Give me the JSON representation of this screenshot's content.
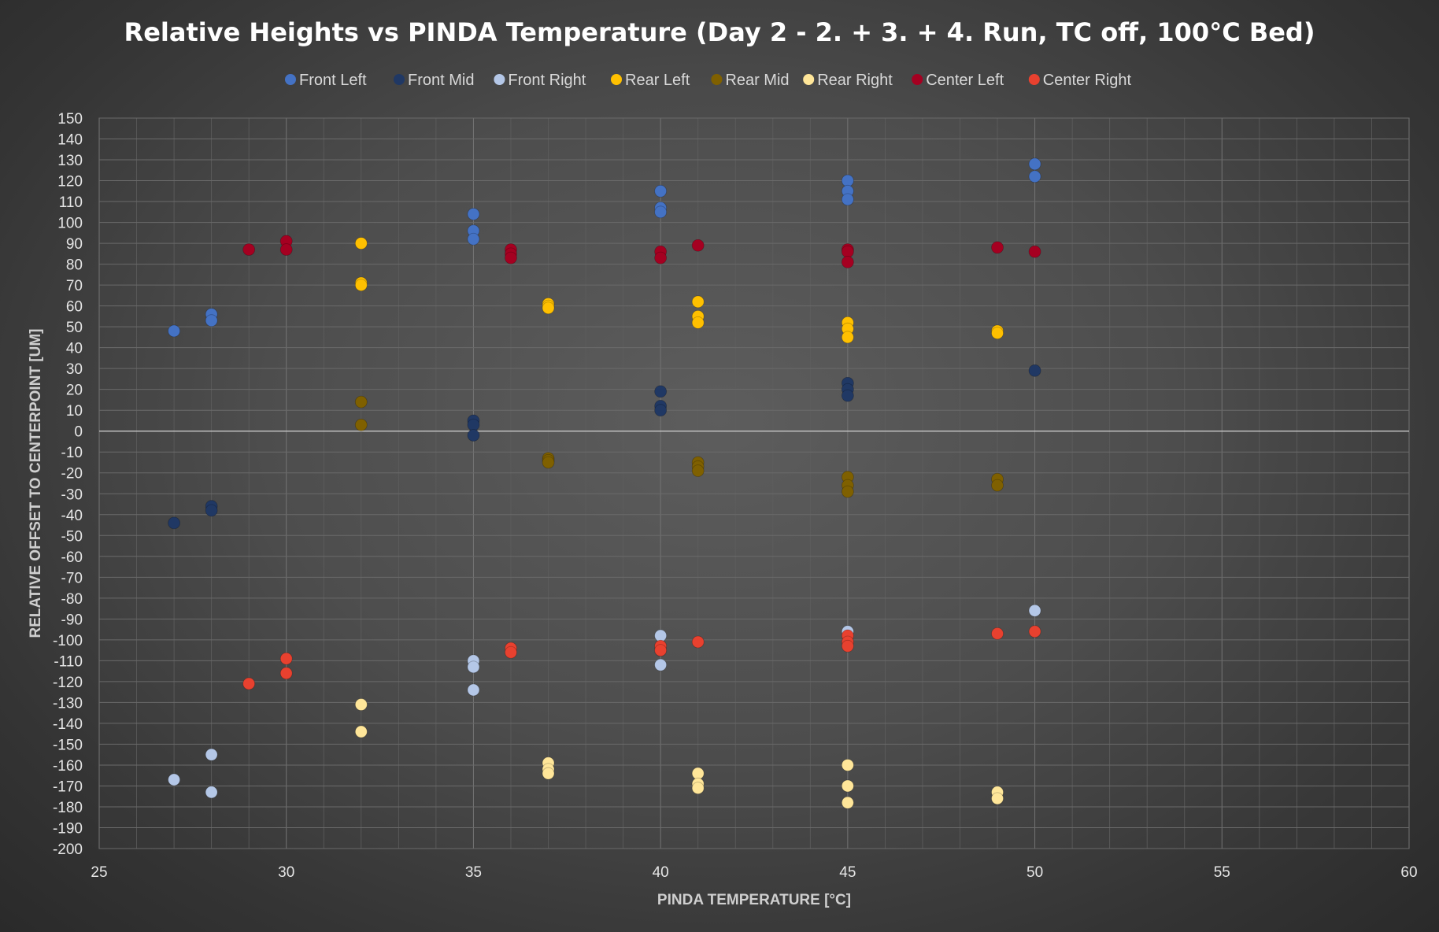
{
  "chart_data": {
    "type": "scatter",
    "title": "Relative Heights vs PINDA Temperature (Day 2 - 2. + 3. + 4. Run, TC off, 100°C Bed)",
    "xlabel": "PINDA TEMPERATURE [°C]",
    "ylabel": "RELATIVE OFFSET TO CENTERPOINT [UM]",
    "xlim": [
      25,
      60
    ],
    "ylim": [
      -200,
      150
    ],
    "x_ticks": [
      "25",
      "30",
      "35",
      "40",
      "45",
      "50",
      "55",
      "60"
    ],
    "y_ticks": [
      "150",
      "140",
      "130",
      "120",
      "110",
      "100",
      "90",
      "80",
      "70",
      "60",
      "50",
      "40",
      "30",
      "20",
      "10",
      "0",
      "-10",
      "-20",
      "-30",
      "-40",
      "-50",
      "-60",
      "-70",
      "-80",
      "-90",
      "-100",
      "-110",
      "-120",
      "-130",
      "-140",
      "-150",
      "-160",
      "-170",
      "-180",
      "-190",
      "-200"
    ],
    "grid": true,
    "legend_position": "top",
    "series": [
      {
        "name": "Front Left",
        "color": "#4472c4",
        "x": [
          27,
          28,
          28,
          35,
          35,
          35,
          40,
          40,
          40,
          45,
          45,
          45,
          50,
          50
        ],
        "y": [
          48,
          56,
          53,
          104,
          96,
          92,
          115,
          107,
          105,
          120,
          115,
          111,
          128,
          122
        ]
      },
      {
        "name": "Front Mid",
        "color": "#203864",
        "x": [
          27,
          28,
          28,
          35,
          35,
          35,
          40,
          40,
          40,
          45,
          45,
          45,
          50
        ],
        "y": [
          -44,
          -36,
          -38,
          5,
          3,
          -2,
          19,
          12,
          10,
          23,
          20,
          17,
          29
        ]
      },
      {
        "name": "Front Right",
        "color": "#b4c7e7",
        "x": [
          27,
          28,
          28,
          35,
          35,
          35,
          40,
          40,
          40,
          45,
          50
        ],
        "y": [
          -167,
          -155,
          -173,
          -110,
          -113,
          -124,
          -98,
          -105,
          -112,
          -96,
          -86
        ]
      },
      {
        "name": "Rear Left",
        "color": "#ffc000",
        "x": [
          32,
          32,
          32,
          37,
          37,
          37,
          41,
          41,
          41,
          45,
          45,
          45,
          49,
          49
        ],
        "y": [
          90,
          71,
          70,
          61,
          60,
          59,
          62,
          55,
          52,
          52,
          49,
          45,
          48,
          47
        ]
      },
      {
        "name": "Rear Mid",
        "color": "#7f6000",
        "x": [
          32,
          32,
          37,
          37,
          37,
          41,
          41,
          41,
          45,
          45,
          45,
          49,
          49
        ],
        "y": [
          14,
          3,
          -13,
          -14,
          -15,
          -15,
          -17,
          -19,
          -22,
          -26,
          -29,
          -23,
          -26
        ]
      },
      {
        "name": "Rear Right",
        "color": "#ffe699",
        "x": [
          32,
          32,
          37,
          37,
          37,
          41,
          41,
          41,
          45,
          45,
          45,
          49,
          49
        ],
        "y": [
          -131,
          -144,
          -159,
          -162,
          -164,
          -164,
          -169,
          -171,
          -160,
          -170,
          -178,
          -173,
          -176
        ]
      },
      {
        "name": "Center Left",
        "color": "#a50021",
        "x": [
          29,
          30,
          30,
          36,
          36,
          36,
          40,
          40,
          41,
          45,
          45,
          45,
          49,
          50
        ],
        "y": [
          87,
          91,
          87,
          87,
          85,
          83,
          86,
          83,
          89,
          87,
          86,
          81,
          88,
          86
        ]
      },
      {
        "name": "Center Right",
        "color": "#e8412f",
        "x": [
          29,
          30,
          30,
          36,
          36,
          40,
          40,
          41,
          45,
          45,
          45,
          49,
          50
        ],
        "y": [
          -121,
          -109,
          -116,
          -104,
          -106,
          -103,
          -105,
          -101,
          -98,
          -101,
          -103,
          -97,
          -96
        ]
      }
    ]
  }
}
